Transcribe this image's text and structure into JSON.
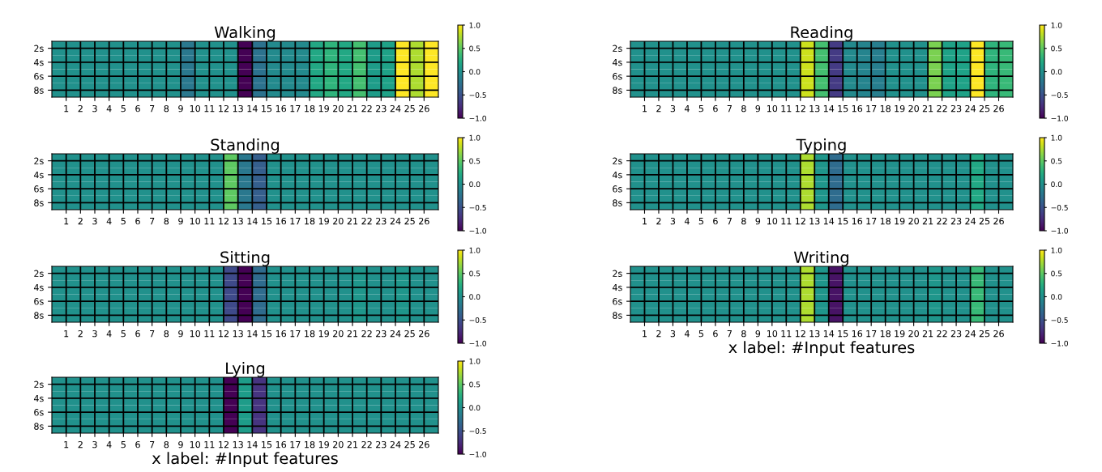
{
  "chart_data": [
    {
      "type": "heatmap",
      "title": "Walking",
      "xlim": [
        0,
        27
      ],
      "xticks": [
        1,
        2,
        3,
        4,
        5,
        6,
        7,
        8,
        9,
        10,
        11,
        12,
        13,
        14,
        15,
        16,
        17,
        18,
        19,
        20,
        21,
        22,
        23,
        24,
        25,
        26
      ],
      "ylim": [
        9,
        1
      ],
      "yticks": [
        {
          "value": 2,
          "label": "2s"
        },
        {
          "value": 4,
          "label": "4s"
        },
        {
          "value": 6,
          "label": "6s"
        },
        {
          "value": 8,
          "label": "8s"
        }
      ],
      "grid": true,
      "clim": [
        -1,
        1
      ],
      "cticks": [
        {
          "value": -1,
          "label": "−1.0"
        },
        {
          "value": -0.5,
          "label": "−0.5"
        },
        {
          "value": 0,
          "label": "0.0"
        },
        {
          "value": 0.5,
          "label": "0.5"
        },
        {
          "value": 1,
          "label": "1.0"
        }
      ],
      "cells": [
        [
          0,
          0,
          0,
          0,
          0,
          0,
          0,
          0,
          0,
          -0.2,
          0,
          0,
          0,
          -1,
          -0.25,
          -0.05,
          -0.05,
          -0.05,
          0.2,
          0.3,
          0.2,
          0.4,
          0.1,
          0.15,
          1,
          0.75,
          1
        ],
        [
          0,
          0,
          0,
          0,
          0,
          0,
          0,
          0,
          0,
          -0.2,
          0,
          0,
          0,
          -1,
          -0.25,
          -0.05,
          -0.05,
          -0.05,
          0.2,
          0.3,
          0.2,
          0.4,
          0.1,
          0.15,
          1,
          0.75,
          1
        ],
        [
          0,
          0,
          0,
          0,
          0,
          0,
          0,
          0,
          0,
          -0.2,
          0,
          0,
          0,
          -1,
          -0.25,
          -0.05,
          -0.05,
          -0.05,
          0.2,
          0.3,
          0.2,
          0.4,
          0.1,
          0.15,
          1,
          0.75,
          1
        ],
        [
          0,
          0,
          0,
          0,
          0,
          0,
          0,
          0,
          0,
          -0.2,
          0,
          0,
          0,
          -1,
          -0.25,
          -0.05,
          -0.05,
          -0.05,
          0.2,
          0.3,
          0.2,
          0.4,
          0.1,
          0.15,
          1,
          0.75,
          1
        ]
      ]
    },
    {
      "type": "heatmap",
      "title": "Reading",
      "xlim": [
        0,
        27
      ],
      "xticks": [
        1,
        2,
        3,
        4,
        5,
        6,
        7,
        8,
        9,
        10,
        11,
        12,
        13,
        14,
        15,
        16,
        17,
        18,
        19,
        20,
        21,
        22,
        23,
        24,
        25,
        26
      ],
      "ylim": [
        9,
        1
      ],
      "yticks": [
        {
          "value": 2,
          "label": "2s"
        },
        {
          "value": 4,
          "label": "4s"
        },
        {
          "value": 6,
          "label": "6s"
        },
        {
          "value": 8,
          "label": "8s"
        }
      ],
      "grid": true,
      "clim": [
        -1,
        1
      ],
      "cticks": [
        {
          "value": -1,
          "label": "−1.0"
        },
        {
          "value": -0.5,
          "label": "−0.5"
        },
        {
          "value": 0,
          "label": "0.0"
        },
        {
          "value": 0.5,
          "label": "0.5"
        },
        {
          "value": 1,
          "label": "1.0"
        }
      ],
      "cells": [
        [
          0,
          0,
          0,
          0,
          0,
          0,
          0,
          0,
          0,
          0,
          0,
          0,
          0.85,
          0.4,
          -0.65,
          -0.05,
          -0.1,
          -0.15,
          0,
          0,
          0,
          0.6,
          0.15,
          0.15,
          1,
          0.3,
          0.35
        ],
        [
          0,
          0,
          0,
          0,
          0,
          0,
          0,
          0,
          0,
          0,
          0,
          0,
          0.85,
          0.4,
          -0.65,
          -0.05,
          -0.1,
          -0.15,
          0,
          0,
          0,
          0.6,
          0.15,
          0.15,
          1,
          0.3,
          0.35
        ],
        [
          0,
          0,
          0,
          0,
          0,
          0,
          0,
          0,
          0,
          0,
          0,
          0,
          0.85,
          0.4,
          -0.65,
          -0.05,
          -0.1,
          -0.15,
          0,
          0,
          0,
          0.6,
          0.15,
          0.15,
          1,
          0.3,
          0.35
        ],
        [
          0,
          0,
          0,
          0,
          0,
          0,
          0,
          0,
          0,
          0,
          0,
          0,
          0.85,
          0.4,
          -0.65,
          -0.05,
          -0.1,
          -0.15,
          0,
          0,
          0,
          0.6,
          0.15,
          0.15,
          1,
          0.3,
          0.35
        ]
      ]
    },
    {
      "type": "heatmap",
      "title": "Standing",
      "xlim": [
        0,
        27
      ],
      "xticks": [
        1,
        2,
        3,
        4,
        5,
        6,
        7,
        8,
        9,
        10,
        11,
        12,
        13,
        14,
        15,
        16,
        17,
        18,
        19,
        20,
        21,
        22,
        23,
        24,
        25,
        26
      ],
      "ylim": [
        9,
        1
      ],
      "yticks": [
        {
          "value": 2,
          "label": "2s"
        },
        {
          "value": 4,
          "label": "4s"
        },
        {
          "value": 6,
          "label": "6s"
        },
        {
          "value": 8,
          "label": "8s"
        }
      ],
      "grid": true,
      "clim": [
        -1,
        1
      ],
      "cticks": [
        {
          "value": -1,
          "label": "−1.0"
        },
        {
          "value": -0.5,
          "label": "−0.5"
        },
        {
          "value": 0,
          "label": "0.0"
        },
        {
          "value": 0.5,
          "label": "0.5"
        },
        {
          "value": 1,
          "label": "1.0"
        }
      ],
      "cells": [
        [
          0,
          0,
          0,
          0,
          0,
          0,
          0,
          0,
          0,
          0,
          0,
          0,
          0.5,
          -0.2,
          -0.4,
          0,
          0,
          0,
          0,
          0,
          0,
          0,
          0,
          0,
          0,
          0,
          0
        ],
        [
          0,
          0,
          0,
          0,
          0,
          0,
          0,
          0,
          0,
          0,
          0,
          0,
          0.5,
          -0.2,
          -0.4,
          0,
          0,
          0,
          0,
          0,
          0,
          0,
          0,
          0,
          0,
          0,
          0
        ],
        [
          0,
          0,
          0,
          0,
          0,
          0,
          0,
          0,
          0,
          0,
          0,
          0,
          0.5,
          -0.2,
          -0.4,
          0,
          0,
          0,
          0,
          0,
          0,
          0,
          0,
          0,
          0,
          0,
          0
        ],
        [
          0,
          0,
          0,
          0,
          0,
          0,
          0,
          0,
          0,
          0,
          0,
          0,
          0.5,
          -0.2,
          -0.4,
          0,
          0,
          0,
          0,
          0,
          0,
          0,
          0,
          0,
          0,
          0,
          0
        ]
      ]
    },
    {
      "type": "heatmap",
      "title": "Typing",
      "xlim": [
        0,
        27
      ],
      "xticks": [
        1,
        2,
        3,
        4,
        5,
        6,
        7,
        8,
        9,
        10,
        11,
        12,
        13,
        14,
        15,
        16,
        17,
        18,
        19,
        20,
        21,
        22,
        23,
        24,
        25,
        26
      ],
      "ylim": [
        9,
        1
      ],
      "yticks": [
        {
          "value": 2,
          "label": "2s"
        },
        {
          "value": 4,
          "label": "4s"
        },
        {
          "value": 6,
          "label": "6s"
        },
        {
          "value": 8,
          "label": "8s"
        }
      ],
      "grid": true,
      "clim": [
        -1,
        1
      ],
      "cticks": [
        {
          "value": -1,
          "label": "−1.0"
        },
        {
          "value": -0.5,
          "label": "−0.5"
        },
        {
          "value": 0,
          "label": "0.0"
        },
        {
          "value": 0.5,
          "label": "0.5"
        },
        {
          "value": 1,
          "label": "1.0"
        }
      ],
      "cells": [
        [
          0,
          0,
          0,
          0,
          0,
          0,
          0,
          0,
          0,
          0,
          0,
          0,
          0.75,
          0.05,
          -0.3,
          0,
          0,
          0,
          0,
          0,
          0,
          0,
          0,
          0,
          0.2,
          0,
          0
        ],
        [
          0,
          0,
          0,
          0,
          0,
          0,
          0,
          0,
          0,
          0,
          0,
          0,
          0.75,
          0.05,
          -0.3,
          0,
          0,
          0,
          0,
          0,
          0,
          0,
          0,
          0,
          0.2,
          0,
          0
        ],
        [
          0,
          0,
          0,
          0,
          0,
          0,
          0,
          0,
          0,
          0,
          0,
          0,
          0.75,
          0.05,
          -0.3,
          0,
          0,
          0,
          0,
          0,
          0,
          0,
          0,
          0,
          0.2,
          0,
          0
        ],
        [
          0,
          0,
          0,
          0,
          0,
          0,
          0,
          0,
          0,
          0,
          0,
          0,
          0.75,
          0.05,
          -0.3,
          0,
          0,
          0,
          0,
          0,
          0,
          0,
          0,
          0,
          0.2,
          0,
          0
        ]
      ]
    },
    {
      "type": "heatmap",
      "title": "Sitting",
      "xlim": [
        0,
        27
      ],
      "xticks": [
        1,
        2,
        3,
        4,
        5,
        6,
        7,
        8,
        9,
        10,
        11,
        12,
        13,
        14,
        15,
        16,
        17,
        18,
        19,
        20,
        21,
        22,
        23,
        24,
        25,
        26
      ],
      "ylim": [
        9,
        1
      ],
      "yticks": [
        {
          "value": 2,
          "label": "2s"
        },
        {
          "value": 4,
          "label": "4s"
        },
        {
          "value": 6,
          "label": "6s"
        },
        {
          "value": 8,
          "label": "8s"
        }
      ],
      "grid": true,
      "clim": [
        -1,
        1
      ],
      "cticks": [
        {
          "value": -1,
          "label": "−1.0"
        },
        {
          "value": -0.5,
          "label": "−0.5"
        },
        {
          "value": 0,
          "label": "0.0"
        },
        {
          "value": 0.5,
          "label": "0.5"
        },
        {
          "value": 1,
          "label": "1.0"
        }
      ],
      "cells": [
        [
          0,
          0,
          0,
          0,
          0,
          0,
          0,
          0,
          0,
          0,
          0,
          0,
          -0.55,
          -1,
          -0.3,
          0,
          0,
          0,
          0,
          0,
          0,
          0.05,
          0,
          0,
          0.05,
          0,
          0
        ],
        [
          0,
          0,
          0,
          0,
          0,
          0,
          0,
          0,
          0,
          0,
          0,
          0,
          -0.55,
          -1,
          -0.3,
          0,
          0,
          0,
          0,
          0,
          0,
          0.05,
          0,
          0,
          0.05,
          0,
          0
        ],
        [
          0,
          0,
          0,
          0,
          0,
          0,
          0,
          0,
          0,
          0,
          0,
          0,
          -0.55,
          -1,
          -0.3,
          0,
          0,
          0,
          0,
          0,
          0,
          0.05,
          0,
          0,
          0.05,
          0,
          0
        ],
        [
          0,
          0,
          0,
          0,
          0,
          0,
          0,
          0,
          0,
          0,
          0,
          0,
          -0.55,
          -1,
          -0.3,
          0,
          0,
          0,
          0,
          0,
          0,
          0.05,
          0,
          0,
          0.05,
          0,
          0
        ]
      ]
    },
    {
      "type": "heatmap",
      "title": "Writing",
      "xlabel": "x label: #Input features",
      "xlim": [
        0,
        27
      ],
      "xticks": [
        1,
        2,
        3,
        4,
        5,
        6,
        7,
        8,
        9,
        10,
        11,
        12,
        13,
        14,
        15,
        16,
        17,
        18,
        19,
        20,
        21,
        22,
        23,
        24,
        25,
        26
      ],
      "ylim": [
        9,
        1
      ],
      "yticks": [
        {
          "value": 2,
          "label": "2s"
        },
        {
          "value": 4,
          "label": "4s"
        },
        {
          "value": 6,
          "label": "6s"
        },
        {
          "value": 8,
          "label": "8s"
        }
      ],
      "grid": true,
      "clim": [
        -1,
        1
      ],
      "cticks": [
        {
          "value": -1,
          "label": "−1.0"
        },
        {
          "value": -0.5,
          "label": "−0.5"
        },
        {
          "value": 0,
          "label": "0.0"
        },
        {
          "value": 0.5,
          "label": "0.5"
        },
        {
          "value": 1,
          "label": "1.0"
        }
      ],
      "cells": [
        [
          0,
          0,
          0,
          0,
          0,
          0,
          0,
          0,
          0,
          0,
          0,
          0,
          0.75,
          0.05,
          -0.9,
          0,
          0,
          0,
          0,
          0,
          0,
          0.05,
          0,
          0,
          0.35,
          0,
          0
        ],
        [
          0,
          0,
          0,
          0,
          0,
          0,
          0,
          0,
          0,
          0,
          0,
          0,
          0.75,
          0.05,
          -0.9,
          0,
          0,
          0,
          0,
          0,
          0,
          0.05,
          0,
          0,
          0.35,
          0,
          0
        ],
        [
          0,
          0,
          0,
          0,
          0,
          0,
          0,
          0,
          0,
          0,
          0,
          0,
          0.75,
          0.05,
          -0.9,
          0,
          0,
          0,
          0,
          0,
          0,
          0.05,
          0,
          0,
          0.35,
          0,
          0
        ],
        [
          0,
          0,
          0,
          0,
          0,
          0,
          0,
          0,
          0,
          0,
          0,
          0,
          0.75,
          0.05,
          -0.9,
          0,
          0,
          0,
          0,
          0,
          0,
          0.05,
          0,
          0,
          0.35,
          0,
          0
        ]
      ]
    },
    {
      "type": "heatmap",
      "title": "Lying",
      "xlabel": "x label: #Input features",
      "xlim": [
        0,
        27
      ],
      "xticks": [
        1,
        2,
        3,
        4,
        5,
        6,
        7,
        8,
        9,
        10,
        11,
        12,
        13,
        14,
        15,
        16,
        17,
        18,
        19,
        20,
        21,
        22,
        23,
        24,
        25,
        26
      ],
      "ylim": [
        9,
        1
      ],
      "yticks": [
        {
          "value": 2,
          "label": "2s"
        },
        {
          "value": 4,
          "label": "4s"
        },
        {
          "value": 6,
          "label": "6s"
        },
        {
          "value": 8,
          "label": "8s"
        }
      ],
      "grid": true,
      "clim": [
        -1,
        1
      ],
      "cticks": [
        {
          "value": -1,
          "label": "−1.0"
        },
        {
          "value": -0.5,
          "label": "−0.5"
        },
        {
          "value": 0,
          "label": "0.0"
        },
        {
          "value": 0.5,
          "label": "0.5"
        },
        {
          "value": 1,
          "label": "1.0"
        }
      ],
      "cells": [
        [
          0,
          0,
          0,
          0,
          0,
          0,
          0,
          0,
          0,
          0,
          0,
          0,
          -1,
          0.1,
          -0.7,
          0,
          0,
          0,
          0,
          0,
          0,
          0,
          0,
          0,
          0,
          0,
          0
        ],
        [
          0,
          0,
          0,
          0,
          0,
          0,
          0,
          0,
          0,
          0,
          0,
          0,
          -1,
          0.1,
          -0.7,
          0,
          0,
          0,
          0,
          0,
          0,
          0,
          0,
          0,
          0,
          0,
          0
        ],
        [
          0,
          0,
          0,
          0,
          0,
          0,
          0,
          0,
          0,
          0,
          0,
          0,
          -1,
          0.1,
          -0.7,
          0,
          0,
          0,
          0,
          0,
          0,
          0,
          0,
          0,
          0,
          0,
          0
        ],
        [
          0,
          0,
          0,
          0,
          0,
          0,
          0,
          0,
          0,
          0,
          0,
          0,
          -1,
          0.1,
          -0.7,
          0,
          0,
          0,
          0,
          0,
          0,
          0,
          0,
          0,
          0,
          0,
          0
        ]
      ]
    }
  ]
}
